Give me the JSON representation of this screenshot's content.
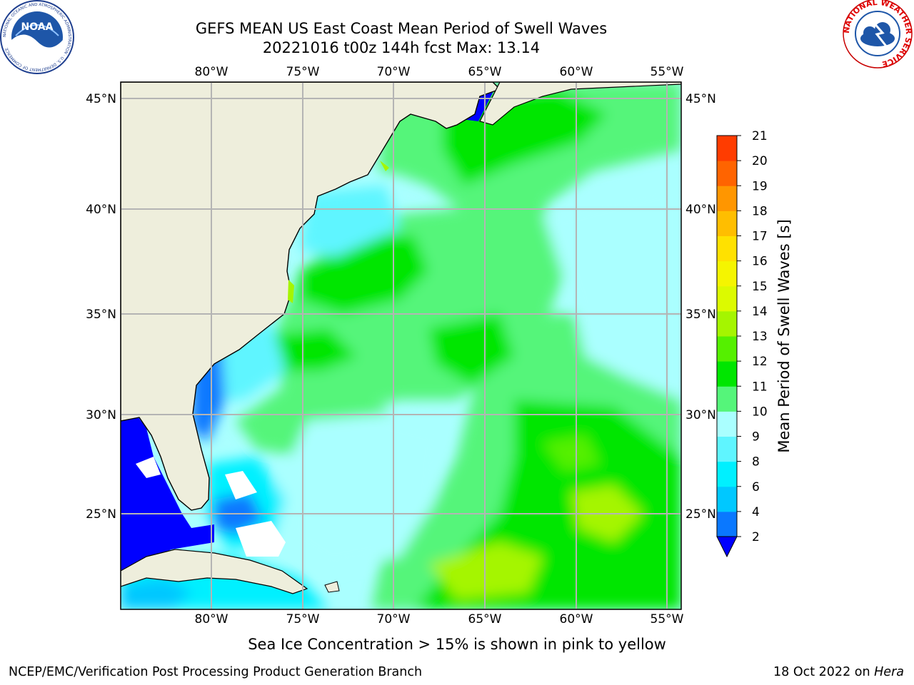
{
  "header": {
    "title_line1": "GEFS MEAN US East Coast Mean Period of Swell Waves",
    "title_line2": "20221016 t00z 144h fcst   Max: 13.14"
  },
  "logos": {
    "left_text": "NOAA",
    "left_ring_text": "NATIONAL OCEANIC AND ATMOSPHERIC ADMINISTRATION · U.S. DEPARTMENT OF COMMERCE",
    "right_ring_text": "NATIONAL WEATHER SERVICE"
  },
  "map": {
    "lon_labels": [
      "80°W",
      "75°W",
      "70°W",
      "65°W",
      "60°W",
      "55°W"
    ],
    "lat_labels": [
      "45°N",
      "40°N",
      "35°N",
      "30°N",
      "25°N"
    ],
    "land_color": "#eeeedc",
    "grid_color": "#b4b4b4"
  },
  "colorbar": {
    "label": "Mean Period of Swell Waves [s]",
    "ticks": [
      "2",
      "4",
      "6",
      "8",
      "9",
      "10",
      "11",
      "12",
      "13",
      "14",
      "15",
      "16",
      "17",
      "18",
      "19",
      "20",
      "21"
    ],
    "colors": [
      "#0a78ff",
      "#00c8ff",
      "#00f0ff",
      "#5ff5ff",
      "#aaffff",
      "#55f57a",
      "#00e600",
      "#55f000",
      "#a5f500",
      "#dcfa00",
      "#f5f500",
      "#ffe100",
      "#ffbe00",
      "#ff9600",
      "#ff6400",
      "#ff3c00",
      "#ff0000"
    ],
    "under_color": "#0000ff"
  },
  "subcaption": "Sea Ice Concentration > 15% is shown in pink to yellow",
  "footer": {
    "left": "NCEP/EMC/Verification Post Processing Product Generation Branch",
    "right_date": "18 Oct 2022 on ",
    "right_machine": "Hera"
  }
}
